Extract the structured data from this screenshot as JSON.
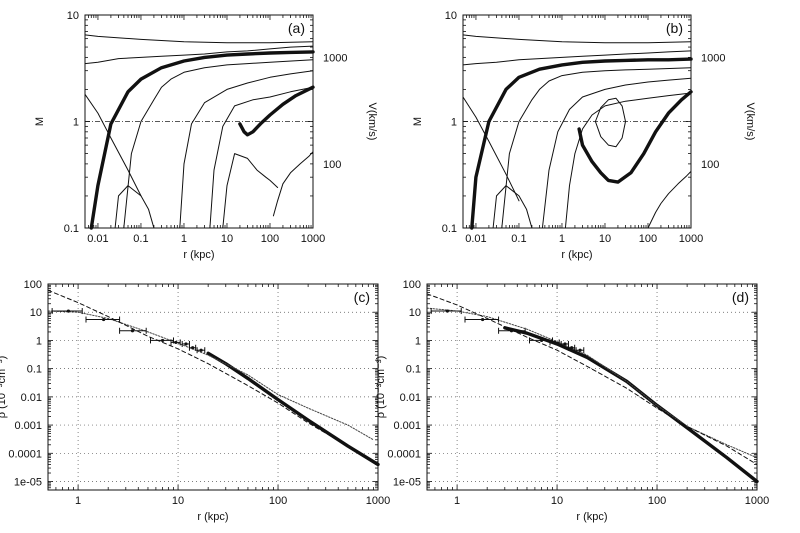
{
  "chart_data": [
    {
      "type": "line",
      "panel_label": "(a)",
      "xlabel": "r (kpc)",
      "ylabel": "M",
      "right_label": "V(km/s)",
      "x_scale": "log",
      "y_scale": "log",
      "xlim": [
        0.005,
        1000
      ],
      "ylim": [
        0.1,
        10
      ],
      "x_ticks": [
        {
          "v": 0.01,
          "t": "0.01"
        },
        {
          "v": 0.1,
          "t": "0.1"
        },
        {
          "v": 1,
          "t": "1"
        },
        {
          "v": 10,
          "t": "10"
        },
        {
          "v": 100,
          "t": "100"
        },
        {
          "v": 1000,
          "t": "1000"
        }
      ],
      "y_ticks": [
        {
          "v": 0.1,
          "t": "0.1"
        },
        {
          "v": 1,
          "t": "1"
        },
        {
          "v": 10,
          "t": "10"
        }
      ],
      "right_ticks": [
        {
          "v": 4.0,
          "t": "1000"
        },
        {
          "v": 0.4,
          "t": "100"
        }
      ],
      "reference_line_y": 1,
      "grid": false,
      "series": [
        {
          "style": "thick",
          "x": [
            0.007,
            0.01,
            0.02,
            0.05,
            0.1,
            0.3,
            1,
            3,
            10,
            30,
            100,
            300,
            1000
          ],
          "y": [
            0.1,
            0.25,
            0.95,
            1.9,
            2.5,
            3.2,
            3.7,
            4.0,
            4.2,
            4.3,
            4.4,
            4.45,
            4.5
          ]
        },
        {
          "style": "thick",
          "x": [
            20,
            25,
            30,
            40,
            60,
            100,
            200,
            400,
            1000
          ],
          "y": [
            0.95,
            0.8,
            0.75,
            0.8,
            0.95,
            1.15,
            1.45,
            1.75,
            2.1
          ]
        },
        {
          "style": "thin",
          "x": [
            0.005,
            0.01,
            0.1,
            1,
            10,
            100,
            1000
          ],
          "y": [
            6.5,
            6.3,
            5.9,
            5.6,
            5.5,
            5.5,
            5.6
          ]
        },
        {
          "style": "thin",
          "x": [
            0.005,
            0.01,
            0.03,
            0.1,
            0.3,
            1,
            3,
            10,
            30,
            100,
            300,
            1000
          ],
          "y": [
            3.5,
            3.6,
            3.9,
            4.0,
            4.1,
            4.2,
            4.3,
            4.5,
            4.6,
            4.8,
            5.0,
            5.1
          ]
        },
        {
          "style": "thin",
          "x": [
            0.005,
            0.01,
            0.02,
            0.05,
            0.1
          ],
          "y": [
            1.8,
            1.2,
            0.7,
            0.35,
            0.2
          ]
        },
        {
          "style": "thin",
          "x": [
            0.04,
            0.06,
            0.1,
            0.2,
            0.3,
            0.5,
            1,
            3,
            10,
            30,
            100,
            1000
          ],
          "y": [
            0.1,
            0.5,
            1.0,
            1.6,
            2.1,
            2.5,
            2.9,
            3.2,
            3.4,
            3.5,
            3.6,
            3.8
          ]
        },
        {
          "style": "thin",
          "x": [
            0.8,
            1,
            1.5,
            3,
            10,
            30,
            100,
            300,
            1000
          ],
          "y": [
            0.1,
            0.4,
            0.95,
            1.5,
            2.0,
            2.3,
            2.6,
            2.8,
            3.0
          ]
        },
        {
          "style": "thin",
          "x": [
            4,
            5,
            8,
            15,
            40,
            100,
            300,
            1000
          ],
          "y": [
            0.1,
            0.35,
            0.9,
            1.4,
            1.6,
            1.7,
            1.9,
            2.1
          ]
        },
        {
          "style": "thin",
          "x": [
            8,
            10,
            15,
            30,
            50,
            80,
            100,
            150
          ],
          "y": [
            0.1,
            0.25,
            0.5,
            0.45,
            0.35,
            0.3,
            0.28,
            0.24
          ]
        },
        {
          "style": "thin",
          "x": [
            120,
            150,
            200,
            300,
            500,
            800,
            1000
          ],
          "y": [
            0.13,
            0.18,
            0.26,
            0.33,
            0.4,
            0.47,
            0.52
          ]
        },
        {
          "style": "thin",
          "x": [
            0.025,
            0.03,
            0.05,
            0.1,
            0.15,
            0.2
          ],
          "y": [
            0.1,
            0.2,
            0.25,
            0.2,
            0.15,
            0.1
          ]
        }
      ]
    },
    {
      "type": "line",
      "panel_label": "(b)",
      "xlabel": "r (kpc)",
      "ylabel": "M",
      "right_label": "V(km/s)",
      "x_scale": "log",
      "y_scale": "log",
      "xlim": [
        0.005,
        1000
      ],
      "ylim": [
        0.1,
        10
      ],
      "x_ticks": [
        {
          "v": 0.01,
          "t": "0.01"
        },
        {
          "v": 0.1,
          "t": "0.1"
        },
        {
          "v": 1,
          "t": "1"
        },
        {
          "v": 10,
          "t": "10"
        },
        {
          "v": 100,
          "t": "100"
        },
        {
          "v": 1000,
          "t": "1000"
        }
      ],
      "y_ticks": [
        {
          "v": 0.1,
          "t": "0.1"
        },
        {
          "v": 1,
          "t": "1"
        },
        {
          "v": 10,
          "t": "10"
        }
      ],
      "right_ticks": [
        {
          "v": 4.0,
          "t": "1000"
        },
        {
          "v": 0.4,
          "t": "100"
        }
      ],
      "reference_line_y": 1,
      "grid": false,
      "series": [
        {
          "style": "thick",
          "x": [
            0.008,
            0.01,
            0.02,
            0.05,
            0.1,
            0.3,
            1,
            3,
            10,
            30,
            100,
            300,
            1000
          ],
          "y": [
            0.1,
            0.3,
            1.0,
            2.0,
            2.6,
            3.1,
            3.4,
            3.6,
            3.7,
            3.75,
            3.8,
            3.8,
            3.85
          ]
        },
        {
          "style": "thick",
          "x": [
            2.5,
            3,
            5,
            8,
            12,
            20,
            40,
            80,
            150,
            300,
            600,
            1000
          ],
          "y": [
            0.85,
            0.6,
            0.42,
            0.33,
            0.28,
            0.27,
            0.33,
            0.5,
            0.8,
            1.2,
            1.6,
            1.9
          ]
        },
        {
          "style": "thin",
          "x": [
            0.005,
            0.01,
            0.1,
            1,
            10,
            100,
            1000
          ],
          "y": [
            6.5,
            6.3,
            5.9,
            5.6,
            5.5,
            5.5,
            5.6
          ]
        },
        {
          "style": "thin",
          "x": [
            0.005,
            0.01,
            0.03,
            0.1,
            0.3,
            1,
            3,
            10,
            30,
            100,
            300,
            1000
          ],
          "y": [
            3.4,
            3.5,
            3.6,
            3.8,
            3.9,
            4.0,
            4.1,
            4.2,
            4.3,
            4.4,
            4.5,
            4.6
          ]
        },
        {
          "style": "thin",
          "x": [
            0.005,
            0.01,
            0.02,
            0.05,
            0.1
          ],
          "y": [
            1.7,
            1.1,
            0.65,
            0.32,
            0.18
          ]
        },
        {
          "style": "thin",
          "x": [
            0.04,
            0.06,
            0.1,
            0.2,
            0.3,
            0.5,
            1,
            3,
            10,
            30,
            100,
            1000
          ],
          "y": [
            0.1,
            0.5,
            1.0,
            1.6,
            2.0,
            2.4,
            2.7,
            2.9,
            3.0,
            3.05,
            3.1,
            3.2
          ]
        },
        {
          "style": "thin",
          "x": [
            0.35,
            0.5,
            0.8,
            1.5,
            3,
            10,
            30,
            100,
            300,
            1000
          ],
          "y": [
            0.1,
            0.35,
            0.8,
            1.3,
            1.7,
            2.0,
            2.2,
            2.35,
            2.45,
            2.55
          ]
        },
        {
          "style": "thin",
          "x": [
            1.2,
            1.5,
            2,
            3,
            5,
            10,
            30,
            100,
            300,
            1000
          ],
          "y": [
            0.1,
            0.25,
            0.5,
            0.85,
            1.15,
            1.4,
            1.55,
            1.65,
            1.75,
            1.85
          ]
        },
        {
          "style": "thin",
          "x": [
            6,
            8,
            12,
            18,
            25,
            30,
            25,
            18,
            12,
            8,
            6
          ],
          "y": [
            1.0,
            1.35,
            1.6,
            1.65,
            1.4,
            1.0,
            0.7,
            0.58,
            0.6,
            0.72,
            1.0
          ]
        },
        {
          "style": "thin",
          "x": [
            100,
            150,
            200,
            300,
            500,
            800,
            1000
          ],
          "y": [
            0.1,
            0.14,
            0.17,
            0.21,
            0.26,
            0.31,
            0.34
          ]
        },
        {
          "style": "thin",
          "x": [
            0.025,
            0.03,
            0.05,
            0.1,
            0.15,
            0.2
          ],
          "y": [
            0.1,
            0.2,
            0.25,
            0.2,
            0.15,
            0.1
          ]
        }
      ]
    },
    {
      "type": "line",
      "panel_label": "(c)",
      "xlabel": "r (kpc)",
      "ylabel": "ρ (10⁻³cm⁻³)",
      "x_scale": "log",
      "y_scale": "log",
      "xlim": [
        0.5,
        1000
      ],
      "ylim": [
        5e-06,
        100
      ],
      "x_ticks": [
        {
          "v": 1,
          "t": "1"
        },
        {
          "v": 10,
          "t": "10"
        },
        {
          "v": 100,
          "t": "100"
        },
        {
          "v": 1000,
          "t": "1000"
        }
      ],
      "y_ticks": [
        {
          "v": 100,
          "t": "100"
        },
        {
          "v": 10,
          "t": "10"
        },
        {
          "v": 1,
          "t": "1"
        },
        {
          "v": 0.1,
          "t": "0.1"
        },
        {
          "v": 0.01,
          "t": "0.01"
        },
        {
          "v": 0.001,
          "t": "0.001"
        },
        {
          "v": 0.0001,
          "t": "0.0001"
        },
        {
          "v": 1e-05,
          "t": "1e-05"
        }
      ],
      "grid": true,
      "series": [
        {
          "style": "thick",
          "x": [
            20,
            30,
            50,
            100,
            200,
            500,
            1000
          ],
          "y": [
            0.35,
            0.15,
            0.045,
            0.008,
            0.0015,
            0.00018,
            4e-05
          ]
        },
        {
          "style": "dotted",
          "x": [
            0.5,
            1,
            2,
            5,
            10,
            20,
            50,
            100,
            200,
            500,
            900
          ],
          "y": [
            11,
            10,
            6,
            2,
            0.8,
            0.3,
            0.06,
            0.012,
            0.004,
            0.001,
            0.0003
          ]
        },
        {
          "style": "dashed",
          "x": [
            0.5,
            1,
            2,
            5,
            10,
            20,
            50,
            100,
            200,
            500,
            1000
          ],
          "y": [
            60,
            22,
            7,
            1.4,
            0.5,
            0.15,
            0.025,
            0.006,
            0.0012,
            0.00018,
            4e-05
          ]
        }
      ],
      "data_points": [
        {
          "x": 0.8,
          "y": 11,
          "xerr": [
            0.55,
            1.1
          ]
        },
        {
          "x": 1.8,
          "y": 5.5,
          "xerr": [
            1.2,
            2.6
          ]
        },
        {
          "x": 3.5,
          "y": 2.2,
          "xerr": [
            2.6,
            4.8
          ]
        },
        {
          "x": 7,
          "y": 1.0,
          "xerr": [
            5.3,
            9.0
          ]
        },
        {
          "x": 9.5,
          "y": 0.85,
          "xerr": [
            8.5,
            10.5
          ]
        },
        {
          "x": 12,
          "y": 0.75,
          "xerr": [
            11,
            13
          ]
        },
        {
          "x": 14,
          "y": 0.55,
          "xerr": [
            13,
            15
          ]
        },
        {
          "x": 17,
          "y": 0.45,
          "xerr": [
            15.5,
            18.5
          ]
        }
      ]
    },
    {
      "type": "line",
      "panel_label": "(d)",
      "xlabel": "r (kpc)",
      "ylabel": "ρ (10⁻³cm⁻³)",
      "x_scale": "log",
      "y_scale": "log",
      "xlim": [
        0.5,
        1000
      ],
      "ylim": [
        5e-06,
        100
      ],
      "x_ticks": [
        {
          "v": 1,
          "t": "1"
        },
        {
          "v": 10,
          "t": "10"
        },
        {
          "v": 100,
          "t": "100"
        },
        {
          "v": 1000,
          "t": "1000"
        }
      ],
      "y_ticks": [
        {
          "v": 100,
          "t": "100"
        },
        {
          "v": 10,
          "t": "10"
        },
        {
          "v": 1,
          "t": "1"
        },
        {
          "v": 0.1,
          "t": "0.1"
        },
        {
          "v": 0.01,
          "t": "0.01"
        },
        {
          "v": 0.001,
          "t": "0.001"
        },
        {
          "v": 0.0001,
          "t": "0.0001"
        },
        {
          "v": 1e-05,
          "t": "1e-05"
        }
      ],
      "grid": true,
      "series": [
        {
          "style": "thick",
          "x": [
            3,
            5,
            10,
            20,
            50,
            100,
            200,
            500,
            1000
          ],
          "y": [
            2.8,
            1.8,
            0.75,
            0.25,
            0.035,
            0.005,
            0.0008,
            7e-05,
            1e-05
          ]
        },
        {
          "style": "dotted",
          "x": [
            0.5,
            1,
            2,
            5,
            10,
            20,
            50,
            100,
            200,
            500,
            1000
          ],
          "y": [
            14,
            11,
            7,
            2.5,
            0.9,
            0.3,
            0.035,
            0.005,
            0.0009,
            0.0002,
            7e-05
          ]
        },
        {
          "style": "dashed",
          "x": [
            0.5,
            1,
            2,
            5,
            10,
            20,
            50,
            100,
            200,
            500,
            1000
          ],
          "y": [
            45,
            18,
            6,
            1.3,
            0.45,
            0.12,
            0.02,
            0.004,
            0.0009,
            0.00018,
            4e-05
          ]
        }
      ],
      "data_points": [
        {
          "x": 0.8,
          "y": 11,
          "xerr": [
            0.55,
            1.1
          ]
        },
        {
          "x": 1.8,
          "y": 5.5,
          "xerr": [
            1.2,
            2.6
          ]
        },
        {
          "x": 3.5,
          "y": 2.2,
          "xerr": [
            2.6,
            4.8
          ]
        },
        {
          "x": 7,
          "y": 1.0,
          "xerr": [
            5.3,
            9.0
          ]
        },
        {
          "x": 9.5,
          "y": 0.85,
          "xerr": [
            8.5,
            10.5
          ]
        },
        {
          "x": 12,
          "y": 0.75,
          "xerr": [
            11,
            13
          ]
        },
        {
          "x": 14,
          "y": 0.55,
          "xerr": [
            13,
            15
          ]
        },
        {
          "x": 17,
          "y": 0.45,
          "xerr": [
            15.5,
            18.5
          ]
        }
      ]
    }
  ]
}
